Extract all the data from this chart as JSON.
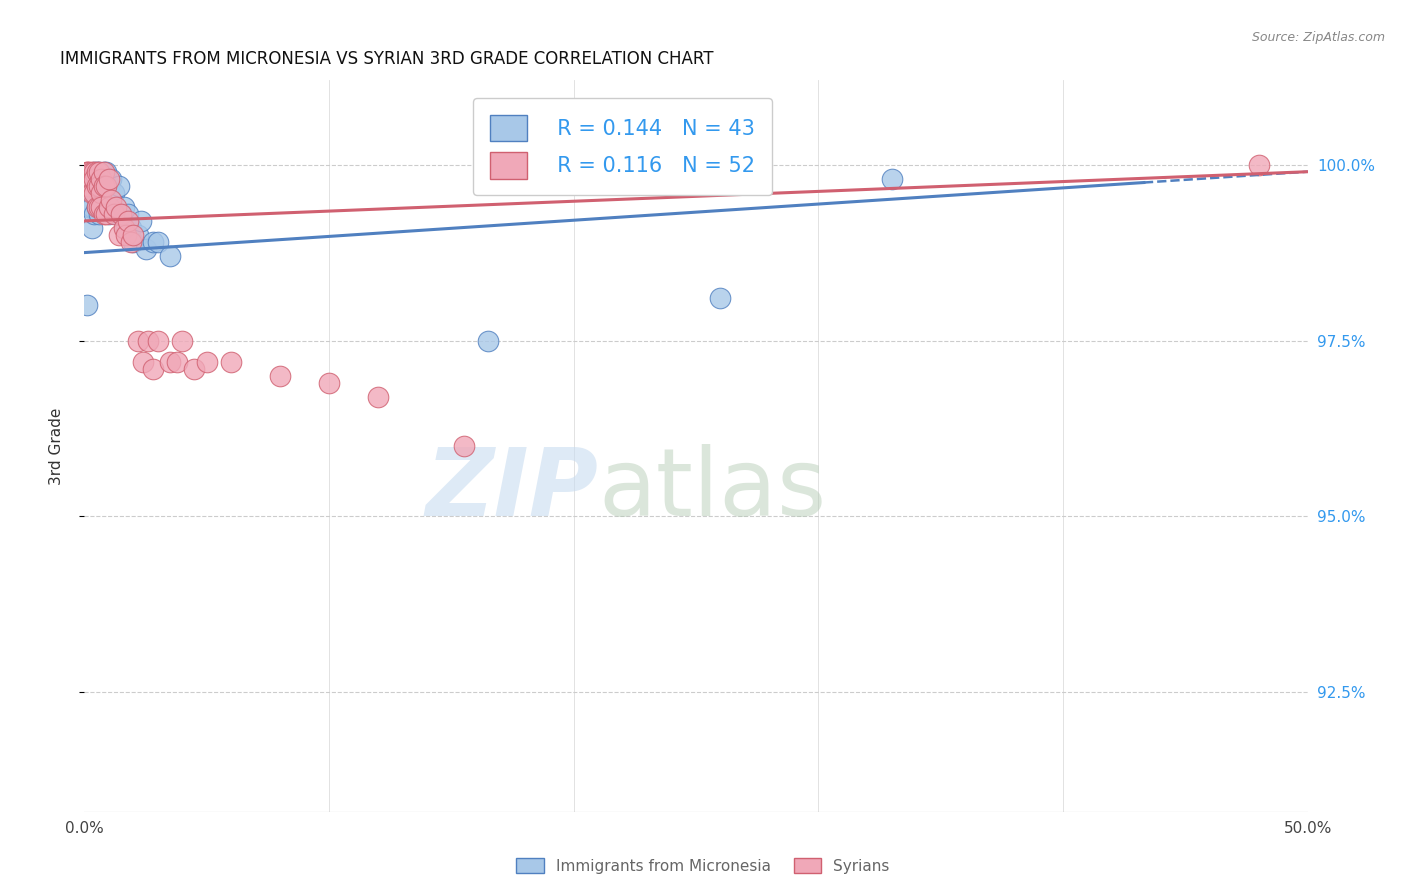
{
  "title": "IMMIGRANTS FROM MICRONESIA VS SYRIAN 3RD GRADE CORRELATION CHART",
  "source": "Source: ZipAtlas.com",
  "ylabel": "3rd Grade",
  "ylabel_right_labels": [
    "100.0%",
    "97.5%",
    "95.0%",
    "92.5%"
  ],
  "ylabel_right_values": [
    1.0,
    0.975,
    0.95,
    0.925
  ],
  "xlim": [
    0.0,
    0.5
  ],
  "ylim": [
    0.908,
    1.012
  ],
  "legend_r1": "R = 0.144",
  "legend_n1": "N = 43",
  "legend_r2": "R = 0.116",
  "legend_n2": "N = 52",
  "blue_color": "#A8C8E8",
  "pink_color": "#F0A8B8",
  "line_blue": "#5080C0",
  "line_pink": "#D06070",
  "watermark_zip": "ZIP",
  "watermark_atlas": "atlas",
  "blue_scatter_x": [
    0.001,
    0.002,
    0.002,
    0.003,
    0.003,
    0.003,
    0.004,
    0.004,
    0.004,
    0.005,
    0.005,
    0.005,
    0.006,
    0.006,
    0.006,
    0.007,
    0.007,
    0.008,
    0.008,
    0.009,
    0.009,
    0.01,
    0.01,
    0.011,
    0.011,
    0.012,
    0.013,
    0.014,
    0.015,
    0.016,
    0.017,
    0.018,
    0.019,
    0.02,
    0.022,
    0.023,
    0.025,
    0.028,
    0.03,
    0.035,
    0.165,
    0.26,
    0.33
  ],
  "blue_scatter_y": [
    0.98,
    0.998,
    0.994,
    0.997,
    0.994,
    0.991,
    0.999,
    0.996,
    0.993,
    0.999,
    0.997,
    0.994,
    0.999,
    0.996,
    0.993,
    0.998,
    0.994,
    0.999,
    0.996,
    0.999,
    0.996,
    0.997,
    0.993,
    0.998,
    0.995,
    0.996,
    0.993,
    0.997,
    0.993,
    0.994,
    0.991,
    0.993,
    0.991,
    0.989,
    0.99,
    0.992,
    0.988,
    0.989,
    0.989,
    0.987,
    0.975,
    0.981,
    0.998
  ],
  "pink_scatter_x": [
    0.001,
    0.001,
    0.002,
    0.002,
    0.003,
    0.003,
    0.003,
    0.004,
    0.004,
    0.004,
    0.005,
    0.005,
    0.005,
    0.006,
    0.006,
    0.006,
    0.007,
    0.007,
    0.007,
    0.008,
    0.008,
    0.008,
    0.009,
    0.009,
    0.01,
    0.01,
    0.011,
    0.012,
    0.013,
    0.014,
    0.015,
    0.016,
    0.017,
    0.018,
    0.019,
    0.02,
    0.022,
    0.024,
    0.026,
    0.028,
    0.03,
    0.035,
    0.038,
    0.04,
    0.045,
    0.05,
    0.06,
    0.08,
    0.1,
    0.12,
    0.155,
    0.48
  ],
  "pink_scatter_y": [
    0.999,
    0.999,
    0.999,
    0.997,
    0.999,
    0.998,
    0.996,
    0.999,
    0.998,
    0.996,
    0.999,
    0.997,
    0.994,
    0.999,
    0.997,
    0.994,
    0.998,
    0.996,
    0.994,
    0.999,
    0.997,
    0.993,
    0.997,
    0.993,
    0.998,
    0.994,
    0.995,
    0.993,
    0.994,
    0.99,
    0.993,
    0.991,
    0.99,
    0.992,
    0.989,
    0.99,
    0.975,
    0.972,
    0.975,
    0.971,
    0.975,
    0.972,
    0.972,
    0.975,
    0.971,
    0.972,
    0.972,
    0.97,
    0.969,
    0.967,
    0.96,
    1.0
  ]
}
